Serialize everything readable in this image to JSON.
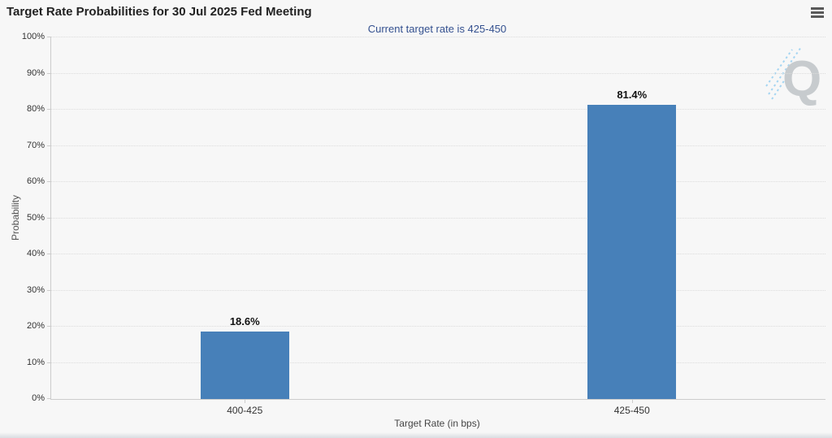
{
  "chart_data": {
    "type": "bar",
    "title": "Target Rate Probabilities for 30 Jul 2025 Fed Meeting",
    "subtitle": "Current target rate is 425-450",
    "categories": [
      "400-425",
      "425-450"
    ],
    "values": [
      18.6,
      81.4
    ],
    "data_labels": [
      "18.6%",
      "81.4%"
    ],
    "xlabel": "Target Rate (in bps)",
    "ylabel": "Probability",
    "ylim": [
      0,
      100
    ],
    "ytick_step": 10,
    "ytick_suffix": "%",
    "grid": "horizontal dotted gridlines every 10%",
    "legend": "none"
  },
  "toolbar": {
    "context_menu_icon": "hamburger-icon"
  },
  "watermark": {
    "letter": "Q"
  },
  "colors": {
    "background": "#f7f7f7",
    "title_text": "#222222",
    "subtitle_text": "#33508f",
    "bar": "#4780b9",
    "grid_line": "#dcdcdc",
    "axis_line": "#cccccc",
    "tick_text": "#333333",
    "menu_icon": "#5a5a5a",
    "watermark_gray": "#c7cbce",
    "watermark_blue": "#a5d5f2"
  }
}
